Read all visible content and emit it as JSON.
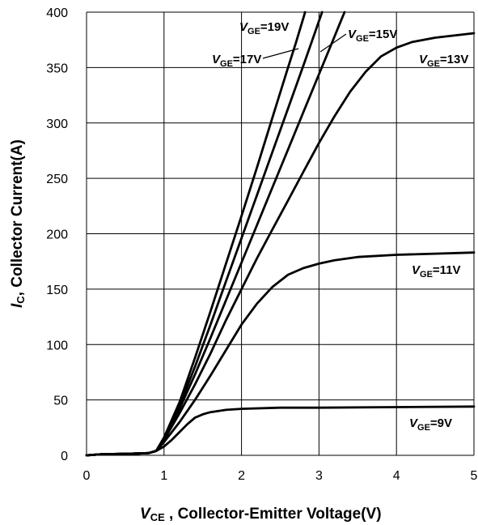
{
  "chart_data": {
    "type": "line",
    "xlabel": {
      "symbol": "V",
      "subscript": "CE",
      "text": " , Collector-Emitter Voltage(V)"
    },
    "ylabel": {
      "symbol": "I",
      "subscript": "C",
      "text": ", Collector Current(A)"
    },
    "xlim": [
      0,
      5
    ],
    "ylim": [
      0,
      400
    ],
    "x_ticks": [
      0,
      1,
      2,
      3,
      4,
      5
    ],
    "y_ticks": [
      0,
      50,
      100,
      150,
      200,
      250,
      300,
      350,
      400
    ],
    "grid": "on",
    "series": [
      {
        "name": "VGE=9V",
        "label": {
          "symbol": "V",
          "subscript": "GE",
          "text": "=9V"
        },
        "points": [
          [
            0,
            0
          ],
          [
            0.2,
            1
          ],
          [
            0.5,
            1.3
          ],
          [
            0.8,
            2
          ],
          [
            0.9,
            4
          ],
          [
            1.0,
            8
          ],
          [
            1.1,
            14
          ],
          [
            1.2,
            21
          ],
          [
            1.3,
            28
          ],
          [
            1.4,
            34
          ],
          [
            1.5,
            37
          ],
          [
            1.6,
            39
          ],
          [
            1.8,
            41
          ],
          [
            2.0,
            42
          ],
          [
            2.5,
            43
          ],
          [
            3,
            43
          ],
          [
            4,
            43.5
          ],
          [
            5,
            44
          ]
        ]
      },
      {
        "name": "VGE=11V",
        "label": {
          "symbol": "V",
          "subscript": "GE",
          "text": "=11V"
        },
        "points": [
          [
            0,
            0
          ],
          [
            0.2,
            1
          ],
          [
            0.5,
            1.3
          ],
          [
            0.8,
            2
          ],
          [
            0.9,
            4
          ],
          [
            1.0,
            12
          ],
          [
            1.2,
            30
          ],
          [
            1.4,
            50
          ],
          [
            1.6,
            72
          ],
          [
            1.8,
            95
          ],
          [
            2.0,
            118
          ],
          [
            2.2,
            137
          ],
          [
            2.4,
            152
          ],
          [
            2.6,
            163
          ],
          [
            2.8,
            169
          ],
          [
            3.0,
            173
          ],
          [
            3.2,
            176
          ],
          [
            3.5,
            179
          ],
          [
            4.0,
            181
          ],
          [
            4.5,
            182
          ],
          [
            5,
            183
          ]
        ]
      },
      {
        "name": "VGE=13V",
        "label": {
          "symbol": "V",
          "subscript": "GE",
          "text": "=13V"
        },
        "points": [
          [
            0,
            0
          ],
          [
            0.2,
            1
          ],
          [
            0.5,
            1.3
          ],
          [
            0.8,
            2
          ],
          [
            0.9,
            4
          ],
          [
            1.0,
            14
          ],
          [
            1.2,
            38
          ],
          [
            1.4,
            64
          ],
          [
            1.6,
            92
          ],
          [
            1.8,
            122
          ],
          [
            2.0,
            150
          ],
          [
            2.2,
            178
          ],
          [
            2.4,
            204
          ],
          [
            2.6,
            230
          ],
          [
            2.8,
            256
          ],
          [
            3.0,
            282
          ],
          [
            3.2,
            306
          ],
          [
            3.4,
            328
          ],
          [
            3.6,
            346
          ],
          [
            3.8,
            360
          ],
          [
            4.0,
            368
          ],
          [
            4.2,
            373
          ],
          [
            4.5,
            377
          ],
          [
            5,
            381
          ]
        ]
      },
      {
        "name": "VGE=15V",
        "label": {
          "symbol": "V",
          "subscript": "GE",
          "text": "=15V"
        },
        "points": [
          [
            0,
            0
          ],
          [
            0.2,
            1
          ],
          [
            0.5,
            1.3
          ],
          [
            0.8,
            2
          ],
          [
            0.9,
            4
          ],
          [
            1.0,
            15
          ],
          [
            1.2,
            42
          ],
          [
            1.4,
            73
          ],
          [
            1.6,
            106
          ],
          [
            1.8,
            140
          ],
          [
            2.0,
            174
          ],
          [
            2.2,
            208
          ],
          [
            2.4,
            242
          ],
          [
            2.6,
            276
          ],
          [
            2.8,
            310
          ],
          [
            3.0,
            344
          ],
          [
            3.2,
            378
          ],
          [
            3.27,
            390
          ],
          [
            3.33,
            400
          ]
        ]
      },
      {
        "name": "VGE=17V",
        "label": {
          "symbol": "V",
          "subscript": "GE",
          "text": "=17V"
        },
        "points": [
          [
            0,
            0
          ],
          [
            0.2,
            1
          ],
          [
            0.5,
            1.3
          ],
          [
            0.8,
            2
          ],
          [
            0.9,
            4
          ],
          [
            1.0,
            16
          ],
          [
            1.2,
            45
          ],
          [
            1.4,
            80
          ],
          [
            1.6,
            118
          ],
          [
            1.8,
            157
          ],
          [
            2.0,
            196
          ],
          [
            2.2,
            235
          ],
          [
            2.4,
            274
          ],
          [
            2.6,
            313
          ],
          [
            2.8,
            352
          ],
          [
            2.9,
            372
          ],
          [
            3.0,
            392
          ],
          [
            3.04,
            400
          ]
        ]
      },
      {
        "name": "VGE=19V",
        "label": {
          "symbol": "V",
          "subscript": "GE",
          "text": "=19V"
        },
        "points": [
          [
            0,
            0
          ],
          [
            0.2,
            1
          ],
          [
            0.5,
            1.3
          ],
          [
            0.8,
            2
          ],
          [
            0.9,
            4
          ],
          [
            1.0,
            16
          ],
          [
            1.2,
            48
          ],
          [
            1.4,
            88
          ],
          [
            1.6,
            130
          ],
          [
            1.8,
            173
          ],
          [
            2.0,
            216
          ],
          [
            2.2,
            260
          ],
          [
            2.4,
            305
          ],
          [
            2.6,
            350
          ],
          [
            2.7,
            372
          ],
          [
            2.8,
            395
          ],
          [
            2.82,
            400
          ]
        ]
      }
    ]
  }
}
